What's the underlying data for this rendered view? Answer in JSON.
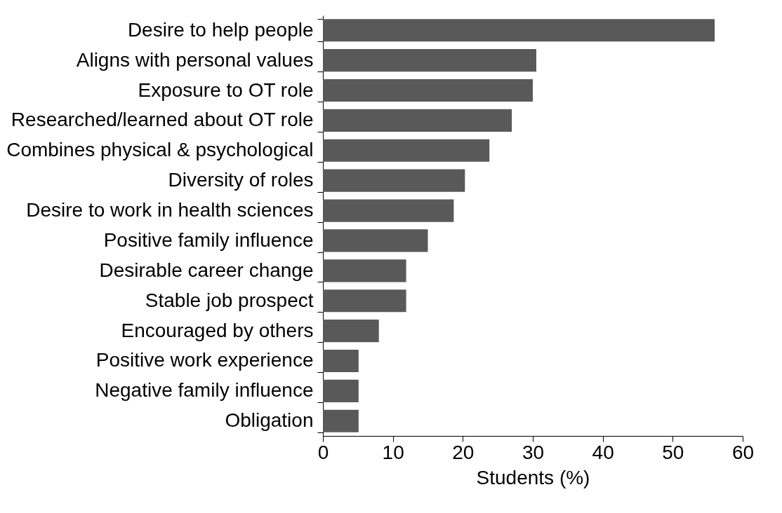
{
  "chart_data": {
    "type": "bar",
    "orientation": "horizontal",
    "xlabel": "Students (%)",
    "categories": [
      "Desire to help people",
      "Aligns with personal values",
      "Exposure to OT role",
      "Researched/learned about OT role",
      "Combines physical & psychological",
      "Diversity of roles",
      "Desire to work in health sciences",
      "Positive family influence",
      "Desirable career change",
      "Stable job prospect",
      "Encouraged by others",
      "Positive work experience",
      "Negative family influence",
      "Obligation"
    ],
    "values": [
      56,
      30.5,
      30,
      27,
      23.8,
      20.3,
      18.7,
      15,
      11.9,
      11.9,
      8,
      5.1,
      5.1,
      5.1
    ],
    "color": "#595959",
    "xlim": [
      0,
      60
    ],
    "xticks": [
      0,
      10,
      20,
      30,
      40,
      50,
      60
    ],
    "grid": false
  }
}
